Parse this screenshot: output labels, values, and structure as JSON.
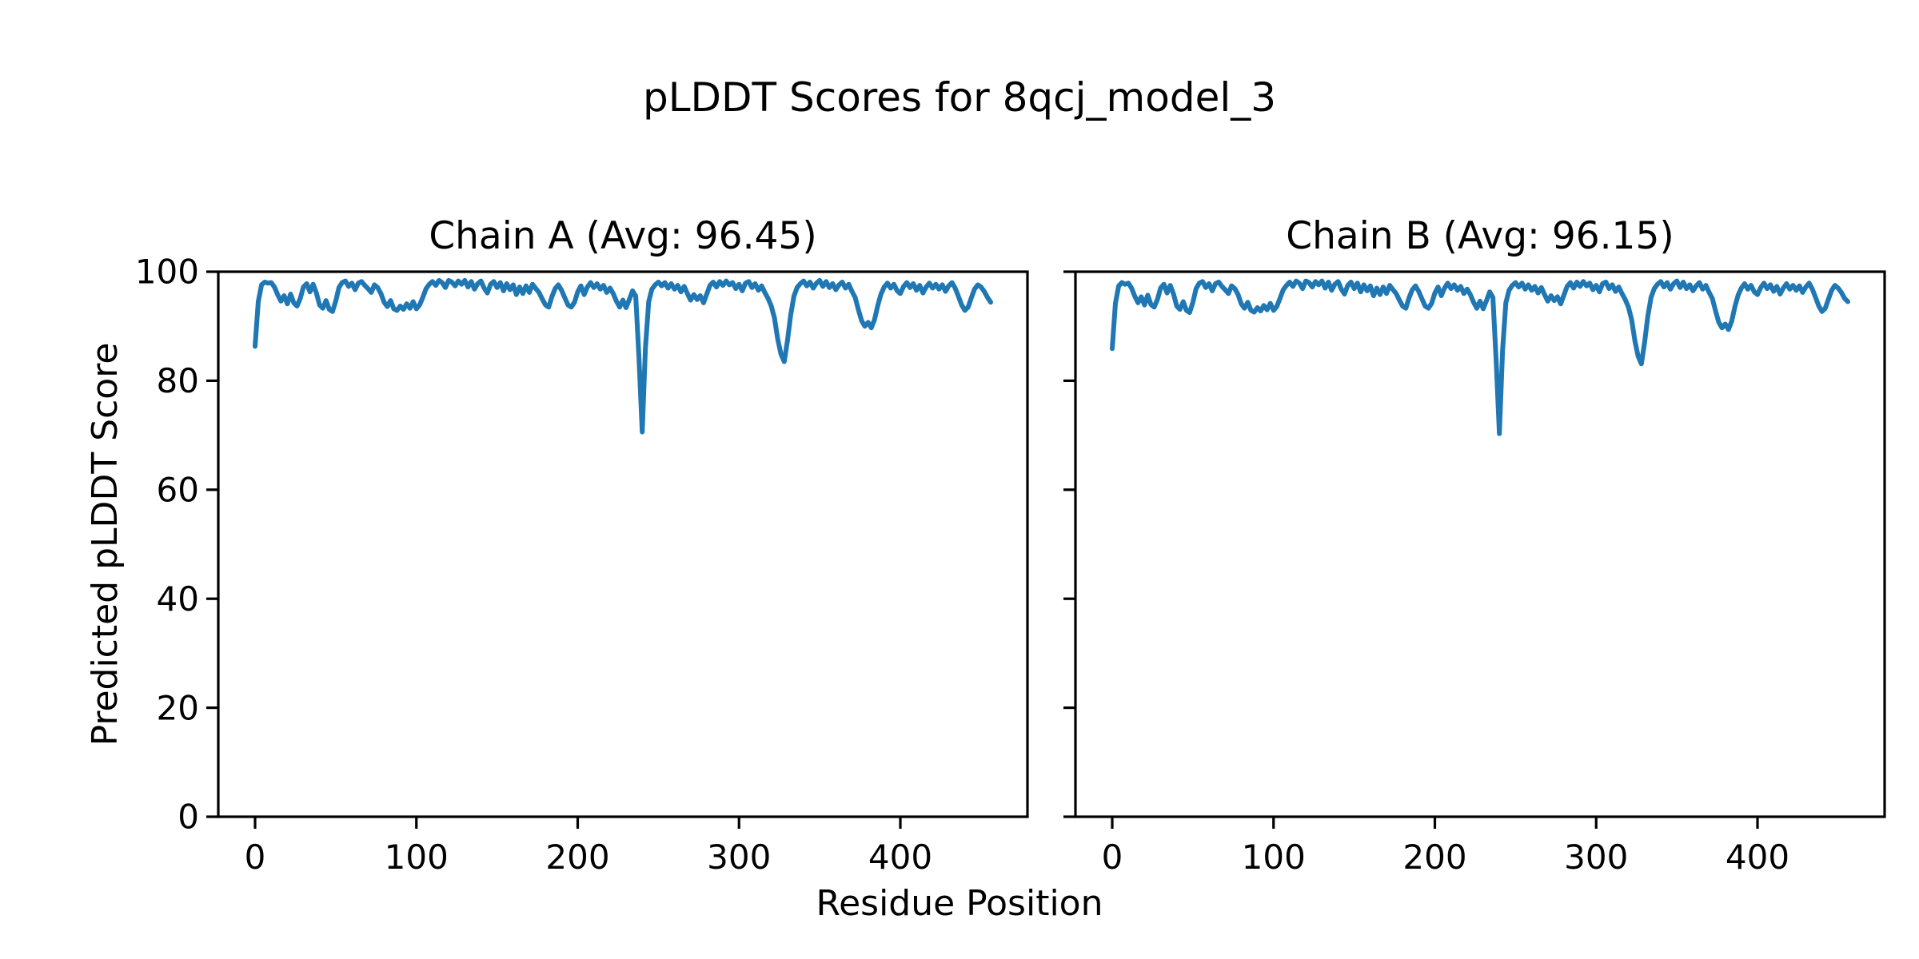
{
  "figure": {
    "title": "pLDDT Scores for 8qcj_model_3",
    "xlabel": "Residue Position",
    "ylabel": "Predicted pLDDT Score",
    "background_color": "#ffffff",
    "text_color": "#000000",
    "line_color": "#1f77b4"
  },
  "chart_data": [
    {
      "type": "line",
      "title": "Chain A (Avg: 96.45)",
      "series_name": "Chain A pLDDT",
      "average": 96.45,
      "xlabel": "Residue Position",
      "ylabel": "Predicted pLDDT Score",
      "xlim": [
        -22.8,
        478.8
      ],
      "ylim": [
        0,
        100
      ],
      "xticks": [
        0,
        100,
        200,
        300,
        400
      ],
      "yticks": [
        0,
        20,
        40,
        60,
        80,
        100
      ],
      "show_ytick_labels": true,
      "grid": false,
      "legend": "none",
      "line_color": "#1f77b4",
      "x_start": 0,
      "x_step": 2,
      "values": [
        86.3,
        94.5,
        97.6,
        98.1,
        97.9,
        98.0,
        97.2,
        95.8,
        94.6,
        95.6,
        94.1,
        95.9,
        94.3,
        93.7,
        95.1,
        97.2,
        97.8,
        96.3,
        97.7,
        96.1,
        93.9,
        93.3,
        94.7,
        93.1,
        92.7,
        94.6,
        97.1,
        98.0,
        98.3,
        97.3,
        97.9,
        96.7,
        97.9,
        98.2,
        97.5,
        96.9,
        96.2,
        97.6,
        97.1,
        96.0,
        94.4,
        93.6,
        94.7,
        93.2,
        92.9,
        93.7,
        93.1,
        94.1,
        93.3,
        94.5,
        93.2,
        93.9,
        95.3,
        96.9,
        97.7,
        98.2,
        97.5,
        98.4,
        98.0,
        97.1,
        98.4,
        98.1,
        97.4,
        98.3,
        97.7,
        98.4,
        97.2,
        98.2,
        96.8,
        97.8,
        98.3,
        97.0,
        96.1,
        97.7,
        98.2,
        97.1,
        98.0,
        96.5,
        97.8,
        96.7,
        97.6,
        95.8,
        97.2,
        96.0,
        97.4,
        96.2,
        97.7,
        96.9,
        96.2,
        95.0,
        93.9,
        93.5,
        95.4,
        96.9,
        97.6,
        96.6,
        95.2,
        93.9,
        93.5,
        94.4,
        96.3,
        97.4,
        95.8,
        97.2,
        98.0,
        97.1,
        97.8,
        96.8,
        97.5,
        96.2,
        97.0,
        96.0,
        94.6,
        93.5,
        94.8,
        93.4,
        94.9,
        96.5,
        95.5,
        84.0,
        70.6,
        86.0,
        94.5,
        96.8,
        97.6,
        98.1,
        97.4,
        98.0,
        97.0,
        97.8,
        96.8,
        97.5,
        96.3,
        97.3,
        96.0,
        94.8,
        95.8,
        94.9,
        95.6,
        94.3,
        95.9,
        97.5,
        98.1,
        97.2,
        98.2,
        97.5,
        98.3,
        97.6,
        98.0,
        96.9,
        97.7,
        96.5,
        97.9,
        98.2,
        97.1,
        97.8,
        96.6,
        97.4,
        96.2,
        95.1,
        93.7,
        91.5,
        87.6,
        84.9,
        83.5,
        87.3,
        92.0,
        95.5,
        97.1,
        97.8,
        98.3,
        97.4,
        98.1,
        97.0,
        97.9,
        98.4,
        97.3,
        98.2,
        97.1,
        97.8,
        96.7,
        97.6,
        98.1,
        97.0,
        97.7,
        96.4,
        95.3,
        93.0,
        91.0,
        90.0,
        90.7,
        89.7,
        91.2,
        93.8,
        95.9,
        97.2,
        97.9,
        97.0,
        97.7,
        96.5,
        96.0,
        97.3,
        98.0,
        97.1,
        97.8,
        96.6,
        97.5,
        96.1,
        97.2,
        97.9,
        97.0,
        97.7,
        96.8,
        97.6,
        96.4,
        97.4,
        98.0,
        97.0,
        95.5,
        93.9,
        92.9,
        93.5,
        95.2,
        96.8,
        97.6,
        97.2,
        96.4,
        95.3,
        94.4
      ]
    },
    {
      "type": "line",
      "title": "Chain B (Avg: 96.15)",
      "series_name": "Chain B pLDDT",
      "average": 96.15,
      "xlabel": "Residue Position",
      "ylabel": "Predicted pLDDT Score",
      "xlim": [
        -22.8,
        478.8
      ],
      "ylim": [
        0,
        100
      ],
      "xticks": [
        0,
        100,
        200,
        300,
        400
      ],
      "yticks": [
        0,
        20,
        40,
        60,
        80,
        100
      ],
      "show_ytick_labels": false,
      "grid": false,
      "legend": "none",
      "line_color": "#1f77b4",
      "x_start": 0,
      "x_step": 2,
      "values": [
        85.9,
        94.2,
        97.4,
        98.0,
        97.7,
        97.9,
        97.0,
        95.5,
        94.3,
        95.4,
        93.9,
        95.7,
        94.0,
        93.5,
        94.9,
        97.0,
        97.7,
        96.1,
        97.5,
        95.9,
        93.7,
        93.1,
        94.5,
        92.9,
        92.5,
        94.4,
        96.9,
        97.9,
        98.2,
        97.1,
        97.8,
        96.5,
        97.8,
        98.1,
        97.3,
        96.7,
        96.0,
        97.4,
        96.9,
        95.8,
        94.1,
        93.3,
        94.4,
        92.9,
        92.6,
        93.4,
        92.8,
        93.8,
        93.0,
        94.2,
        92.9,
        93.6,
        95.1,
        96.7,
        97.5,
        98.1,
        97.3,
        98.3,
        97.9,
        96.9,
        98.3,
        98.0,
        97.2,
        98.2,
        97.6,
        98.3,
        97.0,
        98.1,
        96.6,
        97.7,
        98.2,
        96.8,
        95.9,
        97.5,
        98.1,
        96.9,
        97.9,
        96.3,
        97.6,
        96.5,
        97.4,
        95.6,
        97.0,
        95.8,
        97.2,
        96.0,
        97.5,
        96.7,
        96.0,
        94.8,
        93.7,
        93.3,
        95.2,
        96.7,
        97.4,
        96.4,
        95.0,
        93.7,
        93.3,
        94.2,
        96.1,
        97.2,
        95.6,
        97.0,
        97.9,
        96.9,
        97.6,
        96.6,
        97.3,
        96.0,
        96.8,
        95.8,
        94.4,
        93.3,
        94.6,
        93.2,
        94.7,
        96.3,
        95.3,
        83.6,
        70.3,
        85.6,
        94.3,
        96.6,
        97.5,
        98.0,
        97.2,
        97.9,
        96.8,
        97.6,
        96.6,
        97.3,
        96.1,
        97.1,
        95.8,
        94.6,
        95.6,
        94.7,
        95.4,
        94.1,
        95.7,
        97.3,
        98.0,
        97.0,
        98.1,
        97.3,
        98.2,
        97.4,
        97.9,
        96.7,
        97.5,
        96.3,
        97.8,
        98.1,
        96.9,
        97.6,
        96.4,
        97.2,
        96.0,
        94.9,
        93.5,
        91.2,
        87.3,
        84.5,
        83.1,
        87.0,
        91.8,
        95.3,
        96.9,
        97.7,
        98.2,
        97.2,
        98.0,
        96.8,
        97.8,
        98.3,
        97.1,
        98.1,
        96.9,
        97.6,
        96.5,
        97.4,
        98.0,
        96.8,
        97.5,
        96.2,
        95.1,
        92.8,
        90.7,
        89.7,
        90.4,
        89.4,
        90.9,
        93.6,
        95.7,
        97.0,
        97.8,
        96.8,
        97.5,
        96.3,
        95.8,
        97.1,
        97.9,
        96.9,
        97.6,
        96.4,
        97.3,
        95.9,
        97.0,
        97.8,
        96.8,
        97.5,
        96.6,
        97.4,
        96.2,
        97.2,
        97.9,
        96.8,
        95.3,
        93.7,
        92.7,
        93.3,
        95.0,
        96.6,
        97.5,
        97.0,
        96.2,
        95.1,
        94.5
      ]
    }
  ]
}
